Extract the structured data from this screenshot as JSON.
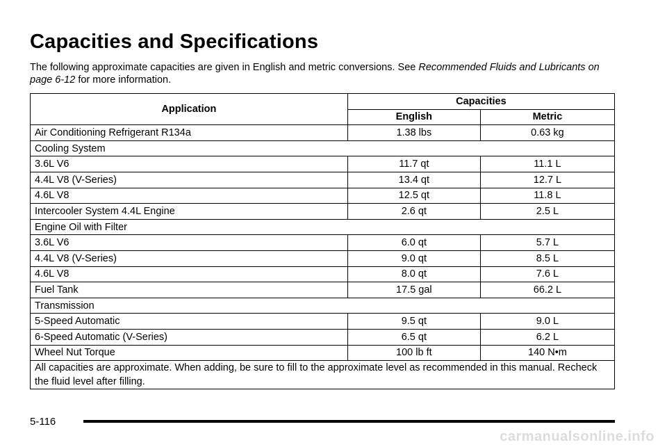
{
  "title": "Capacities and Specifications",
  "intro": {
    "text_before": "The following approximate capacities are given in English and metric conversions. See ",
    "link_text": "Recommended Fluids and Lubricants on page 6-12",
    "text_after": " for more information."
  },
  "table": {
    "headers": {
      "application": "Application",
      "capacities": "Capacities",
      "english": "English",
      "metric": "Metric"
    },
    "rows": [
      {
        "app": "Air Conditioning Refrigerant R134a",
        "english": "1.38 lbs",
        "metric": "0.63 kg",
        "type": "data",
        "indent": false
      },
      {
        "app": "Cooling System",
        "type": "group"
      },
      {
        "app": "3.6L V6",
        "english": "11.7 qt",
        "metric": "11.1 L",
        "type": "data",
        "indent": true
      },
      {
        "app": "4.4L V8 (V-Series)",
        "english": "13.4 qt",
        "metric": "12.7 L",
        "type": "data",
        "indent": true
      },
      {
        "app": "4.6L V8",
        "english": "12.5 qt",
        "metric": "11.8 L",
        "type": "data",
        "indent": true
      },
      {
        "app": "Intercooler System 4.4L Engine",
        "english": "2.6 qt",
        "metric": "2.5 L",
        "type": "data",
        "indent": false
      },
      {
        "app": "Engine Oil with Filter",
        "type": "group"
      },
      {
        "app": "3.6L V6",
        "english": "6.0 qt",
        "metric": "5.7 L",
        "type": "data",
        "indent": true
      },
      {
        "app": "4.4L V8 (V-Series)",
        "english": "9.0 qt",
        "metric": "8.5 L",
        "type": "data",
        "indent": true
      },
      {
        "app": "4.6L V8",
        "english": "8.0 qt",
        "metric": "7.6 L",
        "type": "data",
        "indent": true
      },
      {
        "app": "Fuel Tank",
        "english": "17.5 gal",
        "metric": "66.2 L",
        "type": "data",
        "indent": false
      },
      {
        "app": "Transmission",
        "type": "group"
      },
      {
        "app": "5-Speed Automatic",
        "english": "9.5 qt",
        "metric": "9.0 L",
        "type": "data",
        "indent": true
      },
      {
        "app": "6-Speed Automatic (V-Series)",
        "english": "6.5 qt",
        "metric": "6.2 L",
        "type": "data",
        "indent": true
      },
      {
        "app": "Wheel Nut Torque",
        "english": "100 lb ft",
        "metric": "140 N•m",
        "type": "data",
        "indent": false
      }
    ],
    "note": "All capacities are approximate. When adding, be sure to fill to the approximate level as recommended in this manual. Recheck the fluid level after filling."
  },
  "footer": {
    "page_number": "5-116"
  },
  "watermark": "carmanualsonline.info"
}
